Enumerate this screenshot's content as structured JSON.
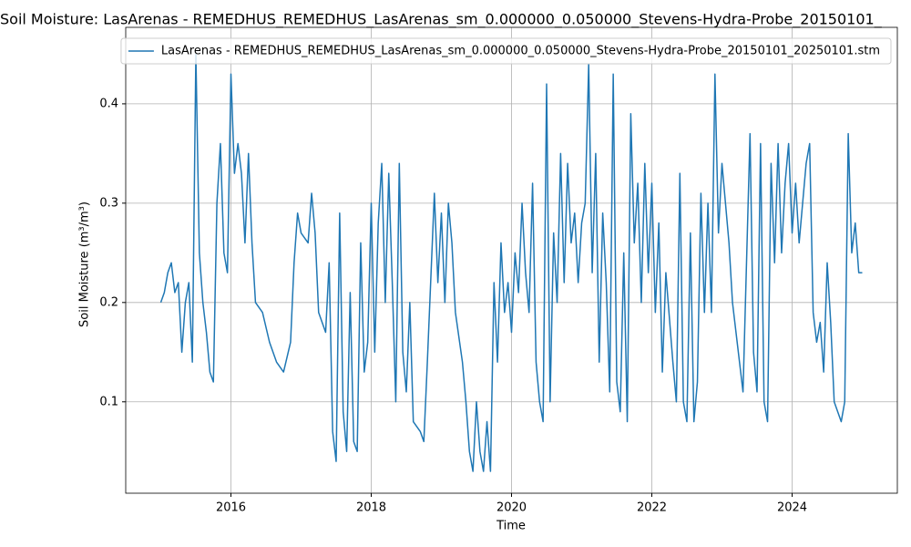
{
  "chart_data": {
    "type": "line",
    "title": "Soil Moisture: LasArenas - REMEDHUS_REMEDHUS_LasArenas_sm_0.000000_0.050000_Stevens-Hydra-Probe_20150101_",
    "xlabel": "Time",
    "ylabel": "Soil Moisture (m³/m³)",
    "xlim": [
      2014.5,
      2025.5
    ],
    "xticks": [
      2016,
      2018,
      2020,
      2022,
      2024
    ],
    "ylim": [
      0.008,
      0.477
    ],
    "yticks": [
      0.1,
      0.2,
      0.3,
      0.4
    ],
    "grid": true,
    "legend": "upper right",
    "x": [
      2015.0,
      2015.05,
      2015.1,
      2015.15,
      2015.2,
      2015.25,
      2015.3,
      2015.35,
      2015.4,
      2015.45,
      2015.5,
      2015.55,
      2015.6,
      2015.65,
      2015.7,
      2015.75,
      2015.8,
      2015.85,
      2015.9,
      2015.95,
      2016.0,
      2016.05,
      2016.1,
      2016.15,
      2016.2,
      2016.25,
      2016.3,
      2016.35,
      2016.45,
      2016.55,
      2016.65,
      2016.75,
      2016.85,
      2016.9,
      2016.95,
      2017.0,
      2017.1,
      2017.15,
      2017.2,
      2017.25,
      2017.35,
      2017.4,
      2017.45,
      2017.5,
      2017.55,
      2017.6,
      2017.65,
      2017.7,
      2017.75,
      2017.8,
      2017.85,
      2017.9,
      2017.95,
      2018.0,
      2018.05,
      2018.1,
      2018.15,
      2018.2,
      2018.25,
      2018.3,
      2018.35,
      2018.4,
      2018.45,
      2018.5,
      2018.55,
      2018.6,
      2018.7,
      2018.75,
      2018.8,
      2018.9,
      2018.95,
      2019.0,
      2019.05,
      2019.1,
      2019.15,
      2019.2,
      2019.3,
      2019.35,
      2019.4,
      2019.45,
      2019.5,
      2019.55,
      2019.6,
      2019.65,
      2019.7,
      2019.75,
      2019.8,
      2019.85,
      2019.9,
      2019.95,
      2020.0,
      2020.05,
      2020.1,
      2020.15,
      2020.2,
      2020.25,
      2020.3,
      2020.35,
      2020.4,
      2020.45,
      2020.5,
      2020.55,
      2020.6,
      2020.65,
      2020.7,
      2020.75,
      2020.8,
      2020.85,
      2020.9,
      2020.95,
      2021.0,
      2021.05,
      2021.1,
      2021.15,
      2021.2,
      2021.25,
      2021.3,
      2021.35,
      2021.4,
      2021.45,
      2021.5,
      2021.55,
      2021.6,
      2021.65,
      2021.7,
      2021.75,
      2021.8,
      2021.85,
      2021.9,
      2021.95,
      2022.0,
      2022.05,
      2022.1,
      2022.15,
      2022.2,
      2022.3,
      2022.35,
      2022.4,
      2022.45,
      2022.5,
      2022.55,
      2022.6,
      2022.65,
      2022.7,
      2022.75,
      2022.8,
      2022.85,
      2022.9,
      2022.95,
      2023.0,
      2023.05,
      2023.1,
      2023.15,
      2023.25,
      2023.3,
      2023.4,
      2023.45,
      2023.5,
      2023.55,
      2023.6,
      2023.65,
      2023.7,
      2023.75,
      2023.8,
      2023.85,
      2023.9,
      2023.95,
      2024.0,
      2024.05,
      2024.1,
      2024.15,
      2024.2,
      2024.25,
      2024.3,
      2024.35,
      2024.4,
      2024.45,
      2024.5,
      2024.55,
      2024.6,
      2024.7,
      2024.75,
      2024.8,
      2024.85,
      2024.9,
      2024.95,
      2025.0
    ],
    "series": [
      {
        "name": "LasArenas - REMEDHUS_REMEDHUS_LasArenas_sm_0.000000_0.050000_Stevens-Hydra-Probe_20150101_20250101.stm",
        "color": "#1f77b4",
        "values": [
          0.2,
          0.21,
          0.23,
          0.24,
          0.21,
          0.22,
          0.15,
          0.2,
          0.22,
          0.14,
          0.45,
          0.25,
          0.2,
          0.17,
          0.13,
          0.12,
          0.3,
          0.36,
          0.25,
          0.23,
          0.43,
          0.33,
          0.36,
          0.33,
          0.26,
          0.35,
          0.26,
          0.2,
          0.19,
          0.16,
          0.14,
          0.13,
          0.16,
          0.24,
          0.29,
          0.27,
          0.26,
          0.31,
          0.27,
          0.19,
          0.17,
          0.24,
          0.07,
          0.04,
          0.29,
          0.09,
          0.05,
          0.21,
          0.06,
          0.05,
          0.26,
          0.13,
          0.16,
          0.3,
          0.15,
          0.28,
          0.34,
          0.2,
          0.33,
          0.22,
          0.1,
          0.34,
          0.15,
          0.11,
          0.2,
          0.08,
          0.07,
          0.06,
          0.14,
          0.31,
          0.22,
          0.29,
          0.2,
          0.3,
          0.26,
          0.19,
          0.14,
          0.1,
          0.05,
          0.03,
          0.1,
          0.05,
          0.03,
          0.08,
          0.03,
          0.22,
          0.14,
          0.26,
          0.19,
          0.22,
          0.17,
          0.25,
          0.21,
          0.3,
          0.23,
          0.19,
          0.32,
          0.14,
          0.1,
          0.08,
          0.42,
          0.1,
          0.27,
          0.2,
          0.35,
          0.22,
          0.34,
          0.26,
          0.29,
          0.22,
          0.28,
          0.3,
          0.44,
          0.23,
          0.35,
          0.14,
          0.29,
          0.22,
          0.11,
          0.43,
          0.12,
          0.09,
          0.25,
          0.08,
          0.39,
          0.26,
          0.32,
          0.2,
          0.34,
          0.23,
          0.32,
          0.19,
          0.28,
          0.13,
          0.23,
          0.14,
          0.1,
          0.33,
          0.1,
          0.08,
          0.27,
          0.08,
          0.12,
          0.31,
          0.19,
          0.3,
          0.19,
          0.43,
          0.27,
          0.34,
          0.3,
          0.26,
          0.2,
          0.14,
          0.11,
          0.37,
          0.15,
          0.11,
          0.36,
          0.1,
          0.08,
          0.34,
          0.24,
          0.36,
          0.25,
          0.32,
          0.36,
          0.27,
          0.32,
          0.26,
          0.3,
          0.34,
          0.36,
          0.19,
          0.16,
          0.18,
          0.13,
          0.24,
          0.18,
          0.1,
          0.08,
          0.1,
          0.37,
          0.25,
          0.28,
          0.23,
          0.23
        ]
      }
    ]
  }
}
